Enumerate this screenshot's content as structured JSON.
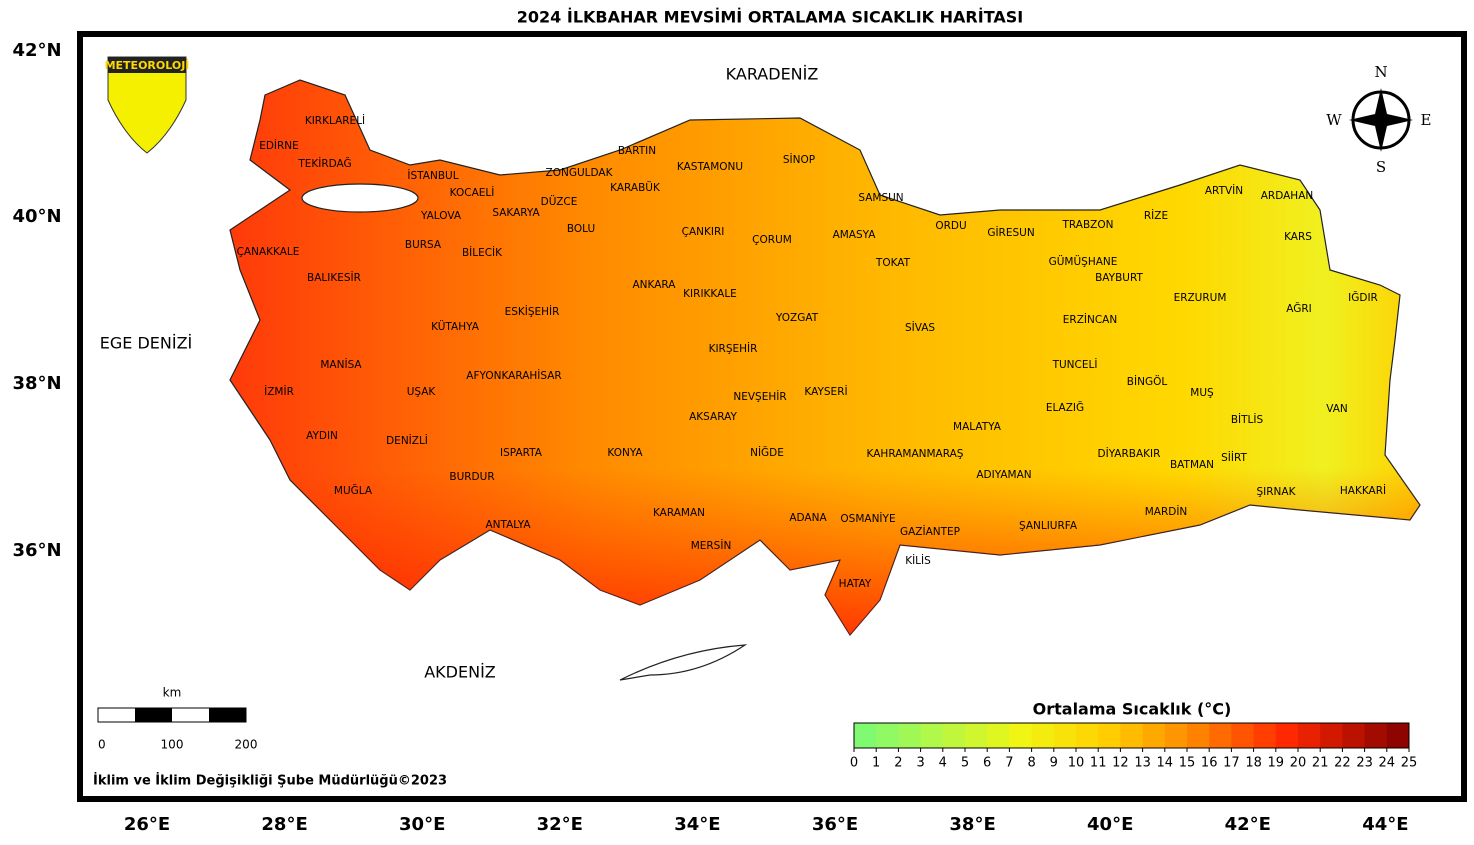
{
  "title": "2024 İLKBAHAR MEVSİMİ ORTALAMA SICAKLIK HARİTASI",
  "logo": "METEOROLOJİ",
  "seas": [
    "KARADENİZ",
    "EGE DENİZİ",
    "AKDENİZ"
  ],
  "provinces": [
    "KIRKLARELİ",
    "EDİRNE",
    "TEKİRDAĞ",
    "İSTANBUL",
    "KOCAELİ",
    "YALOVA",
    "SAKARYA",
    "DÜZCE",
    "ZONGULDAK",
    "BARTIN",
    "KARABÜK",
    "KASTAMONU",
    "SİNOP",
    "SAMSUN",
    "BOLU",
    "ÇANKIRI",
    "ÇORUM",
    "AMASYA",
    "ORDU",
    "GİRESUN",
    "TRABZON",
    "RİZE",
    "ARTVİN",
    "ARDAHAN",
    "KARS",
    "IĞDIR",
    "AĞRI",
    "ERZURUM",
    "BAYBURT",
    "GÜMÜŞHANE",
    "ERZİNCAN",
    "TOKAT",
    "SİVAS",
    "YOZGAT",
    "KIRIKKALE",
    "ANKARA",
    "ESKİŞEHİR",
    "BİLECİK",
    "BURSA",
    "ÇANAKKALE",
    "BALIKESİR",
    "KÜTAHYA",
    "MANİSA",
    "İZMİR",
    "UŞAK",
    "AFYONKARAHİSAR",
    "KIRŞEHİR",
    "NEVŞEHİR",
    "AKSARAY",
    "KAYSERİ",
    "NİĞDE",
    "KONYA",
    "ISPARTA",
    "DENİZLİ",
    "AYDIN",
    "MUĞLA",
    "BURDUR",
    "ANTALYA",
    "KARAMAN",
    "MERSİN",
    "ADANA",
    "OSMANİYE",
    "HATAY",
    "GAZİANTEP",
    "KİLİS",
    "KAHRAMANMARAŞ",
    "MALATYA",
    "ADIYAMAN",
    "ŞANLIURFA",
    "MARDİN",
    "DİYARBAKIR",
    "BATMAN",
    "SİİRT",
    "ŞIRNAK",
    "HAKKARİ",
    "VAN",
    "BİTLİS",
    "MUŞ",
    "BİNGÖL",
    "ELAZIĞ",
    "TUNCELİ"
  ],
  "lat_labels": [
    "42°N",
    "40°N",
    "38°N",
    "36°N"
  ],
  "lon_labels": [
    "26°E",
    "28°E",
    "30°E",
    "32°E",
    "34°E",
    "36°E",
    "38°E",
    "40°E",
    "42°E",
    "44°E"
  ],
  "compass": [
    "N",
    "S",
    "W",
    "E"
  ],
  "scale_bar": {
    "unit": "km",
    "ticks": [
      0,
      100,
      200
    ]
  },
  "colorbar": {
    "title": "Ortalama Sıcaklık (°C)",
    "ticks": [
      0,
      1,
      2,
      3,
      4,
      5,
      6,
      7,
      8,
      9,
      10,
      11,
      12,
      13,
      14,
      15,
      16,
      17,
      18,
      19,
      20,
      21,
      22,
      23,
      24,
      25
    ]
  },
  "credit": "İklim ve İklim Değişikliği Şube Müdürlüğü©2023"
}
